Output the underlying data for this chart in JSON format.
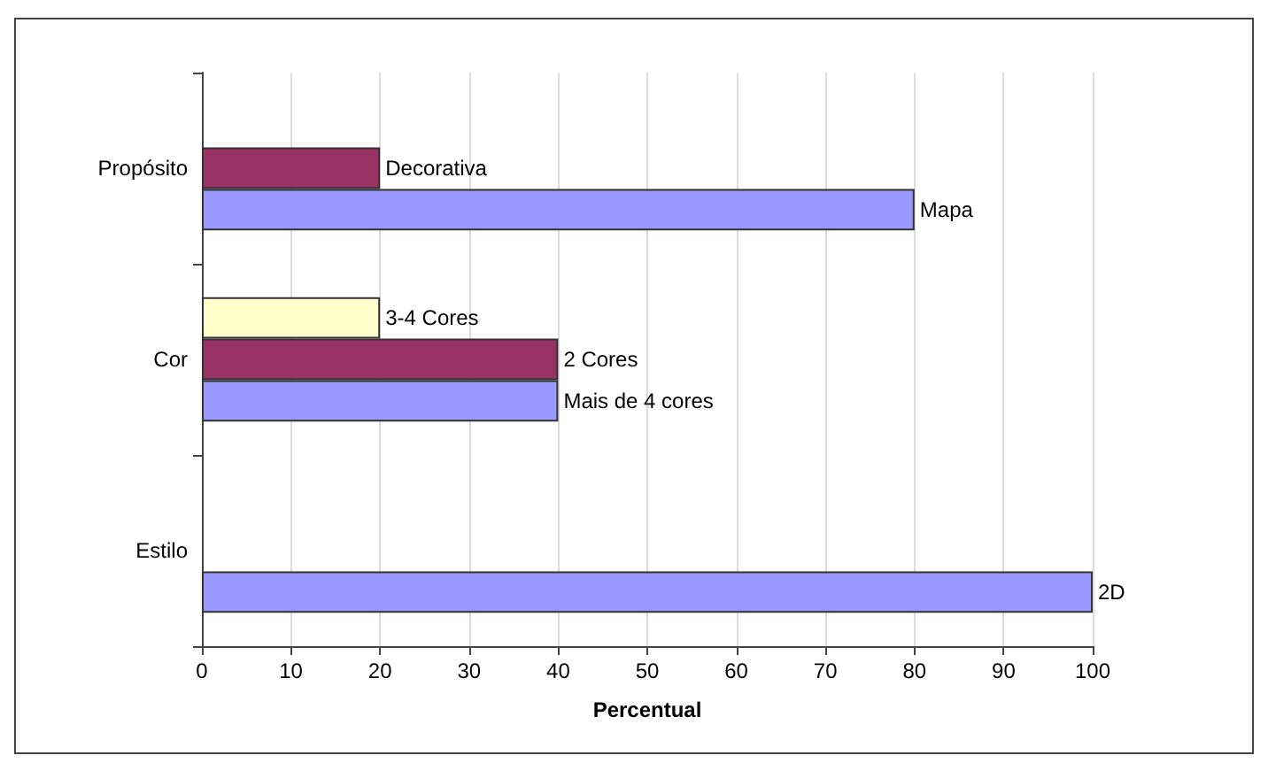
{
  "chart_data": {
    "type": "bar",
    "orientation": "horizontal",
    "xlabel": "Percentual",
    "categories": [
      "Propósito",
      "Cor",
      "Estilo"
    ],
    "series": [
      {
        "color": "#ffffcc",
        "values": [
          null,
          20,
          null
        ]
      },
      {
        "color": "#993366",
        "values": [
          20,
          40,
          null
        ]
      },
      {
        "color": "#9999ff",
        "values": [
          80,
          40,
          100
        ]
      }
    ],
    "annotations": [
      "Decorativa",
      "Mapa",
      "3-4 Cores",
      "2 Cores",
      "Mais de 4 cores",
      "2D"
    ],
    "xlim": [
      0,
      100
    ],
    "xticks": [
      0,
      10,
      20,
      30,
      40,
      50,
      60,
      70,
      80,
      90,
      100
    ],
    "grid": "x"
  }
}
